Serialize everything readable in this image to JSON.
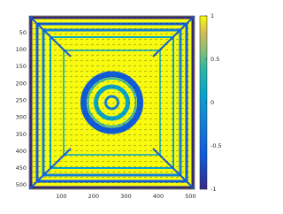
{
  "chart_data": {
    "type": "heatmap",
    "xlim": [
      0.5,
      512.5
    ],
    "ylim": [
      0.5,
      512.5
    ],
    "y_reversed": true,
    "xticks": [
      100,
      200,
      300,
      400,
      500
    ],
    "yticks": [
      50,
      100,
      150,
      200,
      250,
      300,
      350,
      400,
      450,
      500
    ],
    "colorbar": {
      "clim": [
        -1,
        1
      ],
      "ticks": [
        -1,
        -0.5,
        0,
        0.5,
        1
      ],
      "colormap": "parula"
    }
  }
}
